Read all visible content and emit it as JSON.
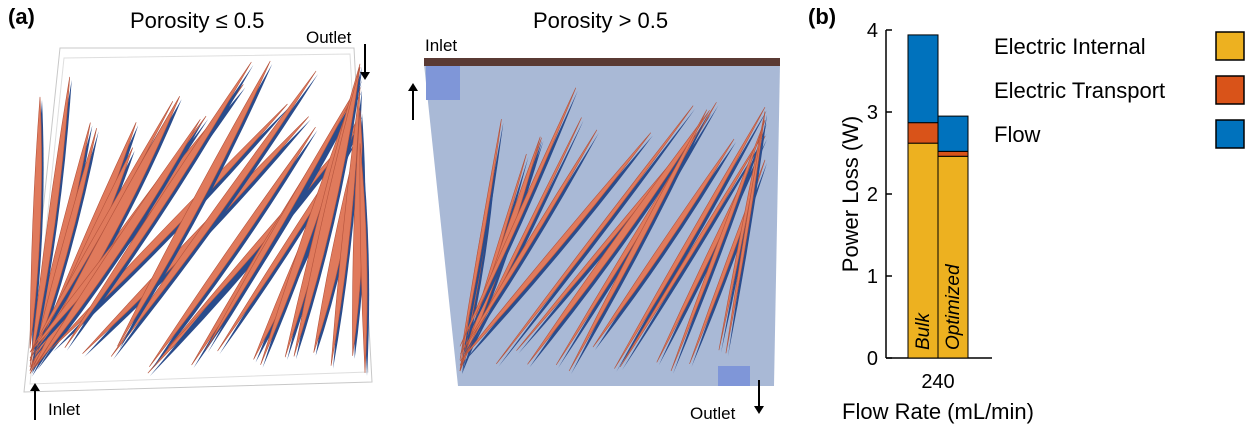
{
  "panel_a": {
    "label": "(a)",
    "left": {
      "title": "Porosity ≤ 0.5",
      "inlet_label": "Inlet",
      "outlet_label": "Outlet"
    },
    "right": {
      "title": "Porosity > 0.5",
      "inlet_label": "Inlet",
      "outlet_label": "Outlet"
    }
  },
  "panel_b": {
    "label": "(b)"
  },
  "colors": {
    "electric_internal": "#EDB120",
    "electric_transport": "#D95319",
    "flow": "#0072BD",
    "structure": "#E07A5C",
    "structure_shadow": "#2A4C8C",
    "box": "#A9B9D6"
  },
  "chart_data": {
    "type": "bar",
    "stacked": true,
    "categories": [
      "Bulk",
      "Optimized"
    ],
    "category_labels_rotated": true,
    "series": [
      {
        "name": "Electric Internal",
        "values": [
          2.62,
          2.46
        ],
        "color": "#EDB120"
      },
      {
        "name": "Electric Transport",
        "values": [
          0.25,
          0.06
        ],
        "color": "#D95319"
      },
      {
        "name": "Flow",
        "values": [
          1.07,
          0.43
        ],
        "color": "#0072BD"
      }
    ],
    "x_tick_label": "240",
    "xlabel": "Flow Rate (mL/min)",
    "ylabel": "Power Loss (W)",
    "ylim": [
      0,
      4
    ],
    "yticks": [
      "0",
      "1",
      "2",
      "3",
      "4"
    ],
    "legend_placement": "right"
  }
}
